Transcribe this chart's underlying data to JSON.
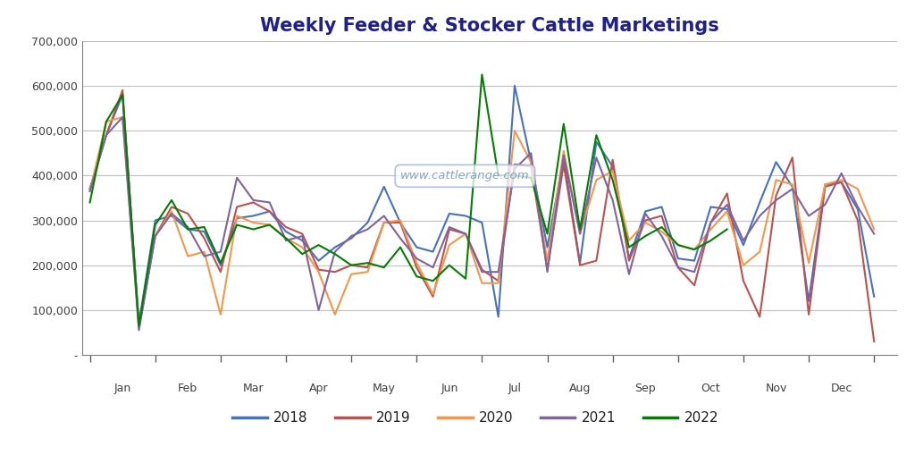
{
  "title": "Weekly Feeder & Stocker Cattle Marketings",
  "watermark": "www.cattlerange.com",
  "background_color": "#ffffff",
  "plot_background": "#ffffff",
  "title_color": "#1f1f8f",
  "grid_color": "#c0c0c0",
  "ylim": [
    0,
    700000
  ],
  "yticks": [
    0,
    100000,
    200000,
    300000,
    400000,
    500000,
    600000,
    700000
  ],
  "ytick_labels": [
    "-",
    "100,000",
    "200,000",
    "300,000",
    "400,000",
    "500,000",
    "600,000",
    "700,000"
  ],
  "months": [
    "Jan",
    "Feb",
    "Mar",
    "Apr",
    "May",
    "Jun",
    "Jul",
    "Aug",
    "Sep",
    "Oct",
    "Nov",
    "Dec"
  ],
  "series": {
    "2018": {
      "color": "#4472c4",
      "values": [
        370000,
        490000,
        580000,
        70000,
        300000,
        310000,
        280000,
        275000,
        200000,
        305000,
        310000,
        320000,
        275000,
        255000,
        210000,
        240000,
        260000,
        295000,
        375000,
        295000,
        240000,
        230000,
        315000,
        310000,
        295000,
        85000,
        600000,
        430000,
        240000,
        440000,
        205000,
        475000,
        420000,
        215000,
        320000,
        330000,
        215000,
        210000,
        330000,
        325000,
        245000,
        340000,
        430000,
        375000,
        120000,
        380000,
        385000,
        325000,
        130000
      ]
    },
    "2019": {
      "color": "#c0504d",
      "values": [
        370000,
        490000,
        590000,
        60000,
        265000,
        330000,
        315000,
        260000,
        185000,
        330000,
        340000,
        320000,
        285000,
        270000,
        190000,
        185000,
        200000,
        195000,
        295000,
        295000,
        195000,
        130000,
        280000,
        270000,
        190000,
        165000,
        425000,
        420000,
        190000,
        425000,
        200000,
        210000,
        435000,
        210000,
        300000,
        310000,
        195000,
        155000,
        295000,
        360000,
        165000,
        85000,
        355000,
        440000,
        90000,
        375000,
        385000,
        300000,
        30000
      ]
    },
    "2020": {
      "color": "#f79646",
      "values": [
        365000,
        520000,
        530000,
        65000,
        265000,
        320000,
        220000,
        230000,
        90000,
        310000,
        295000,
        290000,
        260000,
        240000,
        185000,
        90000,
        180000,
        185000,
        295000,
        300000,
        205000,
        135000,
        245000,
        270000,
        160000,
        160000,
        500000,
        430000,
        210000,
        455000,
        270000,
        390000,
        410000,
        255000,
        295000,
        275000,
        245000,
        235000,
        280000,
        320000,
        200000,
        230000,
        390000,
        380000,
        205000,
        380000,
        390000,
        370000,
        280000
      ]
    },
    "2021": {
      "color": "#8064a2",
      "values": [
        365000,
        490000,
        530000,
        55000,
        265000,
        315000,
        285000,
        220000,
        230000,
        395000,
        345000,
        340000,
        255000,
        265000,
        100000,
        230000,
        265000,
        280000,
        310000,
        260000,
        215000,
        195000,
        285000,
        270000,
        185000,
        185000,
        415000,
        450000,
        185000,
        445000,
        270000,
        440000,
        345000,
        180000,
        315000,
        265000,
        195000,
        185000,
        295000,
        335000,
        255000,
        310000,
        345000,
        370000,
        310000,
        335000,
        405000,
        330000,
        270000
      ]
    },
    "2022": {
      "color": "#008000",
      "values": [
        340000,
        520000,
        580000,
        65000,
        290000,
        345000,
        280000,
        285000,
        205000,
        290000,
        280000,
        290000,
        260000,
        225000,
        245000,
        225000,
        200000,
        205000,
        195000,
        240000,
        175000,
        165000,
        200000,
        170000,
        625000,
        400000,
        400000,
        395000,
        270000,
        515000,
        280000,
        490000,
        390000,
        240000,
        265000,
        285000,
        245000,
        235000,
        255000,
        280000,
        null,
        null,
        null,
        null,
        null,
        null,
        null,
        null,
        null
      ]
    }
  }
}
